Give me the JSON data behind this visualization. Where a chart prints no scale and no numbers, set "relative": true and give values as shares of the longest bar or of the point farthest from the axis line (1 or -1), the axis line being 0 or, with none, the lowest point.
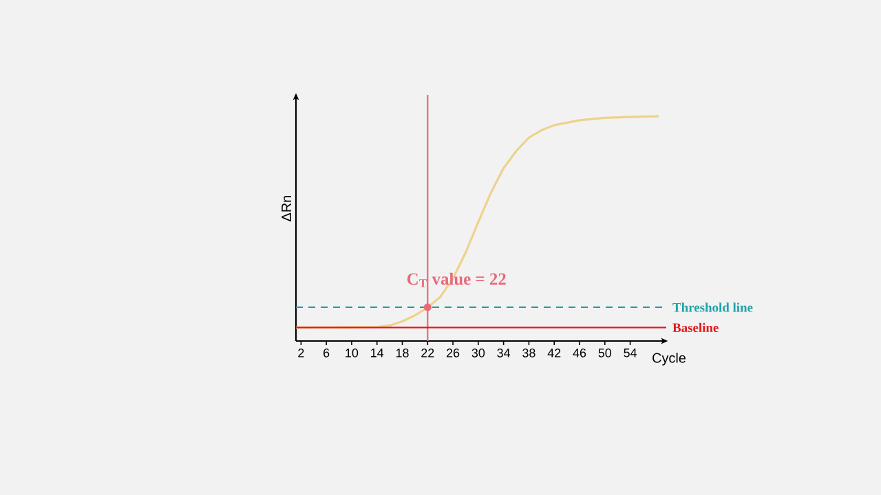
{
  "chart_data": {
    "type": "line",
    "relative": true,
    "xlabel": "Cycle",
    "ylabel": "ΔRn",
    "xlim": [
      1.2,
      59.7
    ],
    "xticks": [
      2,
      6,
      10,
      14,
      18,
      22,
      26,
      30,
      34,
      38,
      42,
      46,
      50,
      54
    ],
    "x": [
      1.2,
      14,
      16,
      18,
      20,
      22,
      24,
      26,
      28,
      30,
      32,
      34,
      36,
      38,
      40,
      42,
      46,
      50,
      54,
      58.5
    ],
    "series": [
      {
        "color": "#eed28c",
        "marker": "none",
        "line_style": "solid",
        "values": [
          0.06,
          0.062,
          0.069,
          0.087,
          0.114,
          0.149,
          0.196,
          0.278,
          0.393,
          0.529,
          0.66,
          0.769,
          0.845,
          0.905,
          0.938,
          0.96,
          0.982,
          0.993,
          0.997,
          1.0
        ]
      },
      {
        "type": "scatter",
        "color": "#e8697a",
        "marker": "circle",
        "x": [
          22
        ],
        "values": [
          0.15
        ]
      }
    ],
    "ref_lines": [
      {
        "axis": "x",
        "value": 22,
        "color": "#e8697a",
        "line_style": "solid"
      },
      {
        "axis": "y",
        "value": 0.15,
        "label": "Threshold line",
        "color": "#1ea3a8",
        "line_style": "dashed"
      },
      {
        "axis": "y",
        "value": 0.06,
        "label": "Baseline",
        "color": "#e8141a",
        "line_style": "solid"
      }
    ],
    "annotations": [
      {
        "text": "C$_{T}$ value = 22",
        "x": 22,
        "y": 0.15
      }
    ]
  }
}
